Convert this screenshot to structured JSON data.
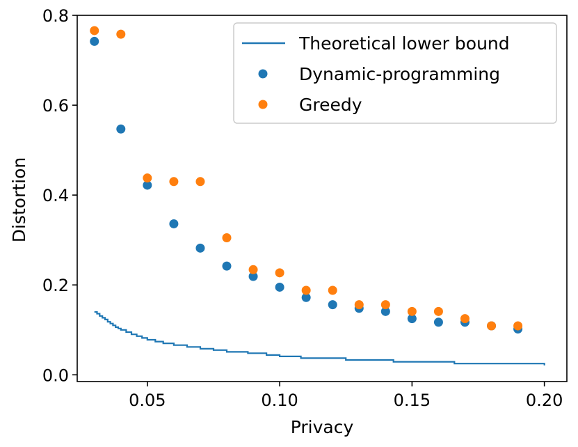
{
  "chart_data": {
    "type": "scatter",
    "title": "",
    "xlabel": "Privacy",
    "ylabel": "Distortion",
    "xlim": [
      0.0235,
      0.2085
    ],
    "ylim": [
      -0.015,
      0.8
    ],
    "xticks": [
      0.05,
      0.1,
      0.15,
      0.2
    ],
    "xtick_labels": [
      "0.05",
      "0.10",
      "0.15",
      "0.20"
    ],
    "yticks": [
      0.0,
      0.2,
      0.4,
      0.6,
      0.8
    ],
    "ytick_labels": [
      "0.0",
      "0.2",
      "0.4",
      "0.6",
      "0.8"
    ],
    "grid": false,
    "legend_position": "top-right",
    "series": [
      {
        "name": "Theoretical lower bound",
        "kind": "step-line",
        "color": "#1f77b4",
        "x": [
          0.03,
          0.031,
          0.032,
          0.033,
          0.034,
          0.035,
          0.036,
          0.037,
          0.038,
          0.039,
          0.04,
          0.042,
          0.044,
          0.046,
          0.048,
          0.05,
          0.053,
          0.056,
          0.06,
          0.065,
          0.07,
          0.075,
          0.08,
          0.088,
          0.095,
          0.1,
          0.108,
          0.125,
          0.143,
          0.166,
          0.2
        ],
        "y": [
          0.14,
          0.136,
          0.131,
          0.127,
          0.123,
          0.118,
          0.114,
          0.11,
          0.106,
          0.103,
          0.1,
          0.095,
          0.09,
          0.086,
          0.082,
          0.078,
          0.074,
          0.07,
          0.066,
          0.062,
          0.058,
          0.055,
          0.051,
          0.048,
          0.044,
          0.041,
          0.037,
          0.033,
          0.029,
          0.025,
          0.021
        ]
      },
      {
        "name": "Dynamic-programming",
        "kind": "scatter",
        "color": "#1f77b4",
        "x": [
          0.03,
          0.04,
          0.05,
          0.06,
          0.07,
          0.08,
          0.09,
          0.1,
          0.11,
          0.12,
          0.13,
          0.14,
          0.15,
          0.16,
          0.17,
          0.18,
          0.19
        ],
        "y": [
          0.742,
          0.547,
          0.422,
          0.336,
          0.282,
          0.242,
          0.219,
          0.195,
          0.172,
          0.156,
          0.148,
          0.141,
          0.125,
          0.117,
          0.117,
          0.109,
          0.102
        ]
      },
      {
        "name": "Greedy",
        "kind": "scatter",
        "color": "#ff7f0e",
        "x": [
          0.03,
          0.04,
          0.05,
          0.06,
          0.07,
          0.08,
          0.09,
          0.1,
          0.11,
          0.12,
          0.13,
          0.14,
          0.15,
          0.16,
          0.17,
          0.18,
          0.19
        ],
        "y": [
          0.766,
          0.758,
          0.438,
          0.43,
          0.43,
          0.305,
          0.234,
          0.227,
          0.188,
          0.188,
          0.156,
          0.156,
          0.141,
          0.141,
          0.125,
          0.109,
          0.109
        ]
      }
    ]
  }
}
